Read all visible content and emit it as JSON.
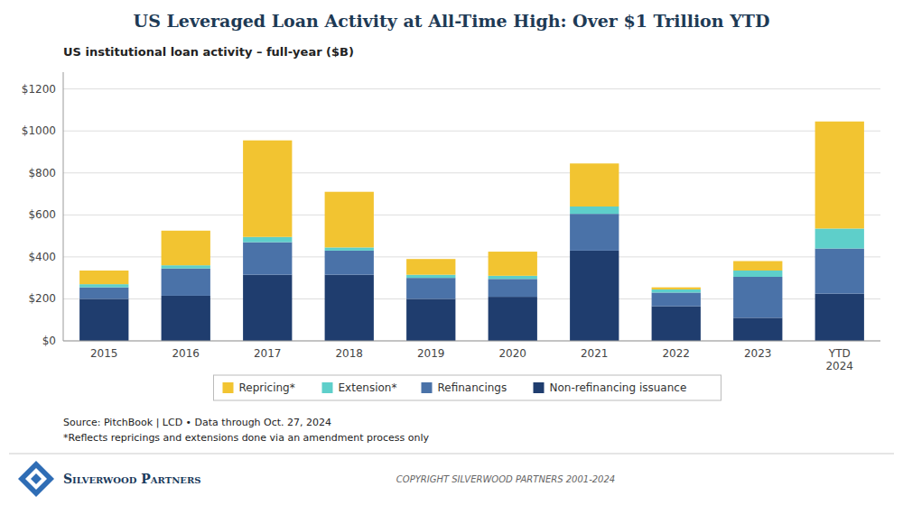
{
  "chart_data": {
    "type": "bar",
    "stacked": true,
    "title": "US Leveraged Loan Activity at All-Time High: Over $1 Trillion YTD",
    "subtitle": "US institutional loan activity – full-year ($B)",
    "categories": [
      "2015",
      "2016",
      "2017",
      "2018",
      "2019",
      "2020",
      "2021",
      "2022",
      "2023",
      "YTD\n2024"
    ],
    "series": [
      {
        "name": "Non-refinancing issuance",
        "color": "#1f3d6e",
        "values": [
          200,
          215,
          315,
          315,
          200,
          210,
          430,
          165,
          110,
          225
        ]
      },
      {
        "name": "Refinancings",
        "color": "#4a72a8",
        "values": [
          55,
          130,
          155,
          115,
          100,
          85,
          175,
          65,
          195,
          215
        ]
      },
      {
        "name": "Extension*",
        "color": "#5ecfca",
        "values": [
          15,
          15,
          25,
          15,
          15,
          15,
          35,
          15,
          30,
          95
        ]
      },
      {
        "name": "Repricing*",
        "color": "#f2c431",
        "values": [
          65,
          165,
          460,
          265,
          75,
          115,
          205,
          10,
          45,
          510
        ]
      }
    ],
    "ylim": [
      0,
      1280
    ],
    "yticks": [
      {
        "value": 0,
        "label": "$0"
      },
      {
        "value": 200,
        "label": "$200"
      },
      {
        "value": 400,
        "label": "$400"
      },
      {
        "value": 600,
        "label": "$600"
      },
      {
        "value": 800,
        "label": "$800"
      },
      {
        "value": 1000,
        "label": "$1000"
      },
      {
        "value": 1200,
        "label": "$1200"
      }
    ],
    "grid": true,
    "legend": "bottom",
    "annotations": [
      "Source: PitchBook | LCD • Data through Oct. 27, 2024",
      "*Reflects repricings and extensions done via an amendment process only",
      "Silverwood Partners",
      "COPYRIGHT SILVERWOOD PARTNERS 2001-2024"
    ]
  }
}
